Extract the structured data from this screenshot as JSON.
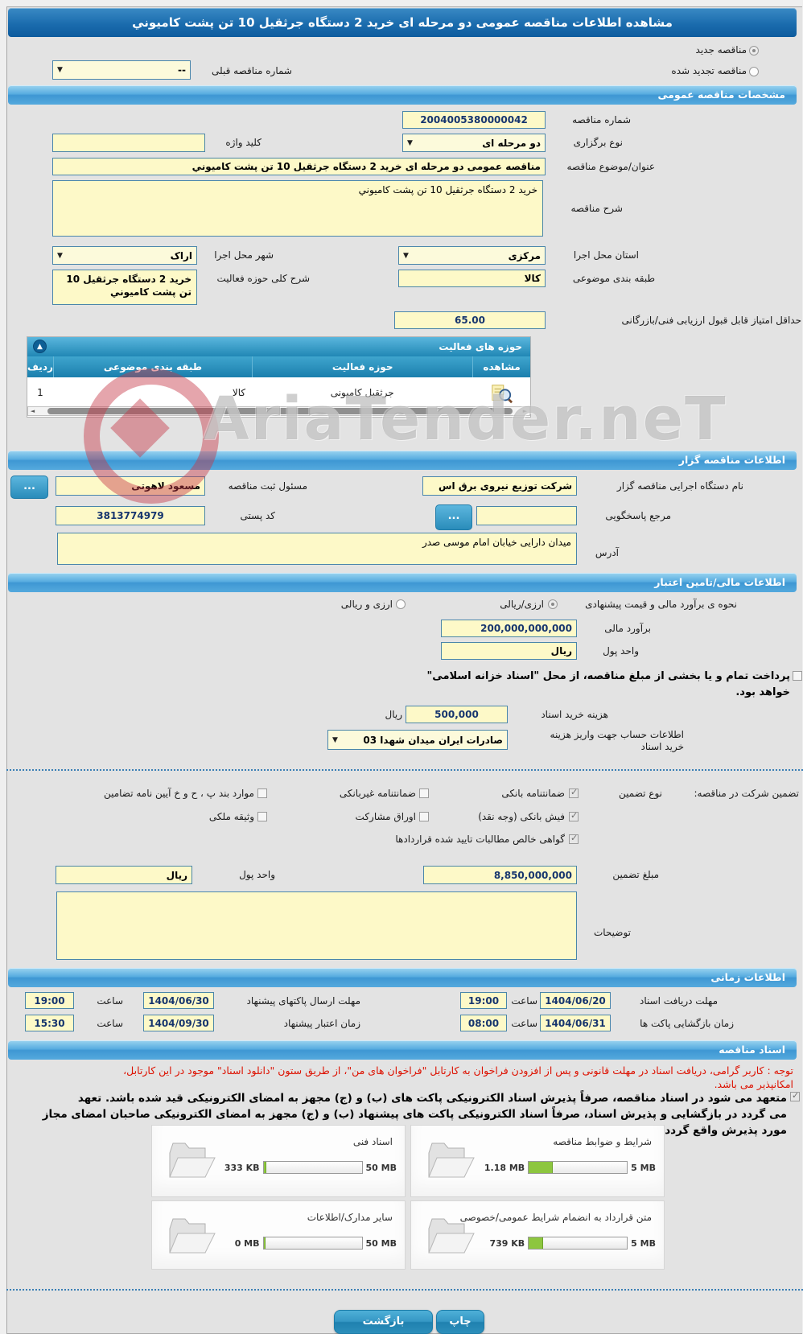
{
  "page_title": "مشاهده اطلاعات مناقصه عمومی دو مرحله ای خرید 2 دستگاه جرثقیل 10 تن پشت کامیوني",
  "watermark": "AriaTender.neT",
  "colors": {
    "accent": "#3f9bd6",
    "input_bg": "#fdf9c8",
    "progress_green": "#8dc63f",
    "notice_red": "#dd1100"
  },
  "top": {
    "radio_new": "مناقصه جدید",
    "radio_new_selected": true,
    "radio_renewed": "مناقصه تجدید شده",
    "radio_renewed_selected": false,
    "prev_number_label": "شماره مناقصه قبلی",
    "prev_number_value": "--"
  },
  "general": {
    "header": "مشخصات مناقصه عمومی",
    "number_label": "شماره مناقصه",
    "number_value": "2004005380000042",
    "type_label": "نوع برگزاری",
    "type_value": "دو مرحله ای",
    "keyword_label": "کلید واژه",
    "keyword_value": "",
    "subject_label": "عنوان/موضوع مناقصه",
    "subject_value": "مناقصه عمومی دو مرحله ای خرید 2 دستگاه جرثقیل 10 تن پشت کامیوني",
    "desc_label": "شرح مناقصه",
    "desc_value": "خرید 2 دستگاه جرثقیل 10 تن پشت کامیوني",
    "province_label": "استان محل اجرا",
    "province_value": "مرکزی",
    "city_label": "شهر محل اجرا",
    "city_value": "اراک",
    "category_label": "طبقه بندی موضوعی",
    "category_value": "کالا",
    "activity_label": "شرح کلی حوزه فعالیت",
    "activity_value": "خرید 2 دستگاه جرثقیل 10 تن پشت کامیوني",
    "min_score_label": "حداقل امتیاز قابل قبول ارزیابی فنی/بازرگانی",
    "min_score_value": "65.00"
  },
  "activity_table": {
    "header": "حوزه های فعالیت",
    "collapse_icon": "▲",
    "columns": [
      "ردیف",
      "طبقه بندی موضوعی",
      "حوزه فعالیت",
      "مشاهده"
    ],
    "rows": [
      {
        "index": "1",
        "category": "کالا",
        "activity": "جرثقیل کامیونی"
      }
    ]
  },
  "agency": {
    "header": "اطلاعات مناقصه گزار",
    "name_label": "نام دستگاه اجرایی مناقصه گزار",
    "name_value": "شرکت توزیع نیروی برق اس",
    "registrar_label": "مسئول ثبت مناقصه",
    "registrar_value": "مسعود لاهوتی",
    "browse_label": "...",
    "reference_label": "مرجع پاسخگویی",
    "reference_value": "",
    "postal_label": "کد پستی",
    "postal_value": "3813774979",
    "address_label": "آدرس",
    "address_value": "میدان دارایی خیابان امام موسی صدر"
  },
  "financial": {
    "header": "اطلاعات مالی/تامین اعتبار",
    "method_label": "نحوه ی برآورد مالی و قیمت پیشنهادی",
    "method_option1": "ارزی/ریالی",
    "method_option1_selected": true,
    "method_option2": "ارزی و ریالی",
    "method_option2_selected": false,
    "estimate_label": "برآورد مالی",
    "estimate_value": "200,000,000,000",
    "currency_label": "واحد پول",
    "currency_value": "ریال",
    "treasury_checked": false,
    "treasury_note_line1": "پرداخت تمام و یا بخشی از مبلغ مناقصه، از محل \"اسناد خزانه اسلامی\"",
    "treasury_note_line2": "خواهد بود.",
    "doc_fee_label": "هزینه خرید اسناد",
    "doc_fee_value": "500,000",
    "doc_fee_unit": "ریال",
    "account_label_line1": "اطلاعات حساب جهت واریز هزینه",
    "account_label_line2": "خرید اسناد",
    "account_value": "صادرات ایران میدان شهدا 03"
  },
  "guarantee": {
    "section_label": "تضمین شرکت در مناقصه:",
    "type_label": "نوع تضمین",
    "options": [
      {
        "label": "ضمانتنامه بانکی",
        "checked": true
      },
      {
        "label": "ضمانتنامه غیربانکی",
        "checked": false
      },
      {
        "label": "موارد بند پ ، ح و خ آیین نامه تضامین",
        "checked": false
      },
      {
        "label": "فیش بانکی (وجه نقد)",
        "checked": true
      },
      {
        "label": "اوراق مشارکت",
        "checked": false
      },
      {
        "label": "وثیقه ملکی",
        "checked": false
      },
      {
        "label": "گواهی خالص مطالبات تایید شده قراردادها",
        "checked": true
      }
    ],
    "amount_label": "مبلغ تضمین",
    "amount_value": "8,850,000,000",
    "currency_label": "واحد پول",
    "currency_value": "ریال",
    "notes_label": "توضیحات",
    "notes_value": ""
  },
  "timing": {
    "header": "اطلاعات زمانی",
    "hour_label": "ساعت",
    "rows": [
      {
        "label": "مهلت دریافت اسناد",
        "date": "1404/06/20",
        "time": "19:00"
      },
      {
        "label": "مهلت ارسال پاکتهای پیشنهاد",
        "date": "1404/06/30",
        "time": "19:00"
      },
      {
        "label": "زمان بازگشایی پاکت ها",
        "date": "1404/06/31",
        "time": "08:00"
      },
      {
        "label": "زمان اعتبار پیشنهاد",
        "date": "1404/09/30",
        "time": "15:30"
      }
    ]
  },
  "documents": {
    "header": "اسناد مناقصه",
    "notice_lines": [
      "توجه : کاربر گرامی، دریافت اسناد در مهلت قانونی و پس از افزودن فراخوان به کارتابل \"فراخوان های من\"، از طریق ستون \"دانلود اسناد\" موجود در این کارتابل،",
      "امکانپذیر می باشد."
    ],
    "commitment_checked": true,
    "commitment_lines": [
      "متعهد می شود در اسناد مناقصه، صرفاً پذیرش اسناد الکترونیکی پاکت های (ب) و (ج) مجهز به امضای الکترونیکی قید شده باشد. تعهد",
      "می گردد در بازگشایی و پذیرش اسناد، صرفاً اسناد الکترونیکی پاکت های پیشنهاد (ب) و (ج) مجهز به امضای الکترونیکی صاحبان امضای مجاز",
      "مورد پذیرش واقع گردد."
    ],
    "cards": [
      {
        "title": "شرایط و ضوابط مناقصه",
        "size": "1.18 MB",
        "capacity": "5 MB",
        "fill": "24%"
      },
      {
        "title": "اسناد فنی",
        "size": "333 KB",
        "capacity": "50 MB",
        "fill": "2%"
      },
      {
        "title": "متن قرارداد به انضمام شرایط عمومی/خصوصی",
        "size": "739 KB",
        "capacity": "5 MB",
        "fill": "14%"
      },
      {
        "title": "سایر مدارک/اطلاعات",
        "size": "0 MB",
        "capacity": "50 MB",
        "fill": "1%"
      }
    ]
  },
  "footer": {
    "back_label": "بازگشت",
    "print_label": "چاپ"
  }
}
